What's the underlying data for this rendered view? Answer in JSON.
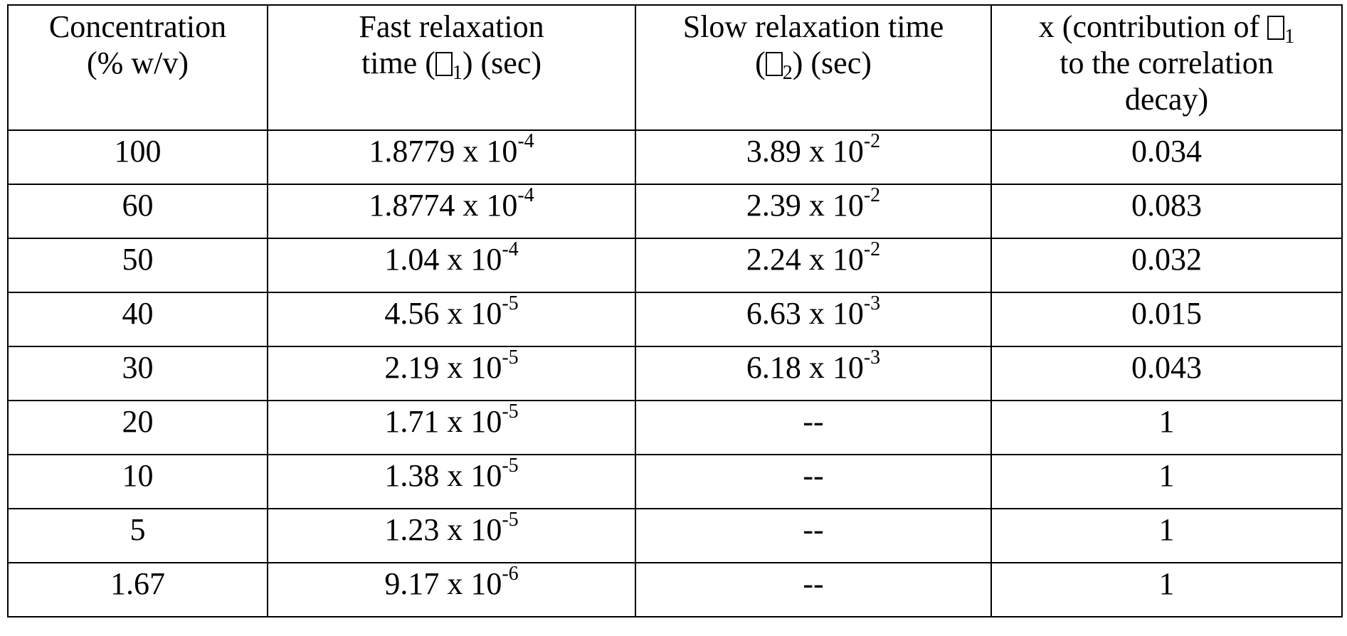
{
  "table": {
    "headers": {
      "concentration": [
        "Concentration",
        "(% w/v)"
      ],
      "fast": {
        "line1": "Fast relaxation",
        "pre": "time (",
        "sub": "1",
        "post": ") (sec)"
      },
      "slow": {
        "line1": "Slow relaxation time",
        "pre": "(",
        "sub": "2",
        "post": ") (sec)"
      },
      "x": {
        "pre": "x (contribution of ",
        "sub": "1",
        "line2": "to the correlation",
        "line3": "decay)"
      }
    },
    "rows": [
      {
        "conc": "100",
        "fast_m": "1.8779 x 10",
        "fast_e": "-4",
        "slow_m": "3.89 x 10",
        "slow_e": "-2",
        "x": "0.034"
      },
      {
        "conc": "60",
        "fast_m": "1.8774 x 10",
        "fast_e": "-4",
        "slow_m": "2.39 x 10",
        "slow_e": "-2",
        "x": "0.083"
      },
      {
        "conc": "50",
        "fast_m": "1.04 x 10",
        "fast_e": "-4",
        "slow_m": "2.24 x 10",
        "slow_e": "-2",
        "x": "0.032"
      },
      {
        "conc": "40",
        "fast_m": "4.56 x 10",
        "fast_e": "-5",
        "slow_m": "6.63 x 10",
        "slow_e": "-3",
        "x": "0.015"
      },
      {
        "conc": "30",
        "fast_m": "2.19 x 10",
        "fast_e": "-5",
        "slow_m": "6.18 x 10",
        "slow_e": "-3",
        "x": "0.043"
      },
      {
        "conc": "20",
        "fast_m": "1.71 x 10",
        "fast_e": "-5",
        "slow_m": "--",
        "slow_e": "",
        "x": "1"
      },
      {
        "conc": "10",
        "fast_m": "1.38 x 10",
        "fast_e": "-5",
        "slow_m": "--",
        "slow_e": "",
        "x": "1"
      },
      {
        "conc": "5",
        "fast_m": "1.23 x 10",
        "fast_e": "-5",
        "slow_m": "--",
        "slow_e": "",
        "x": "1"
      },
      {
        "conc": "1.67",
        "fast_m": "9.17 x 10",
        "fast_e": "-6",
        "slow_m": "--",
        "slow_e": "",
        "x": "1"
      }
    ]
  }
}
